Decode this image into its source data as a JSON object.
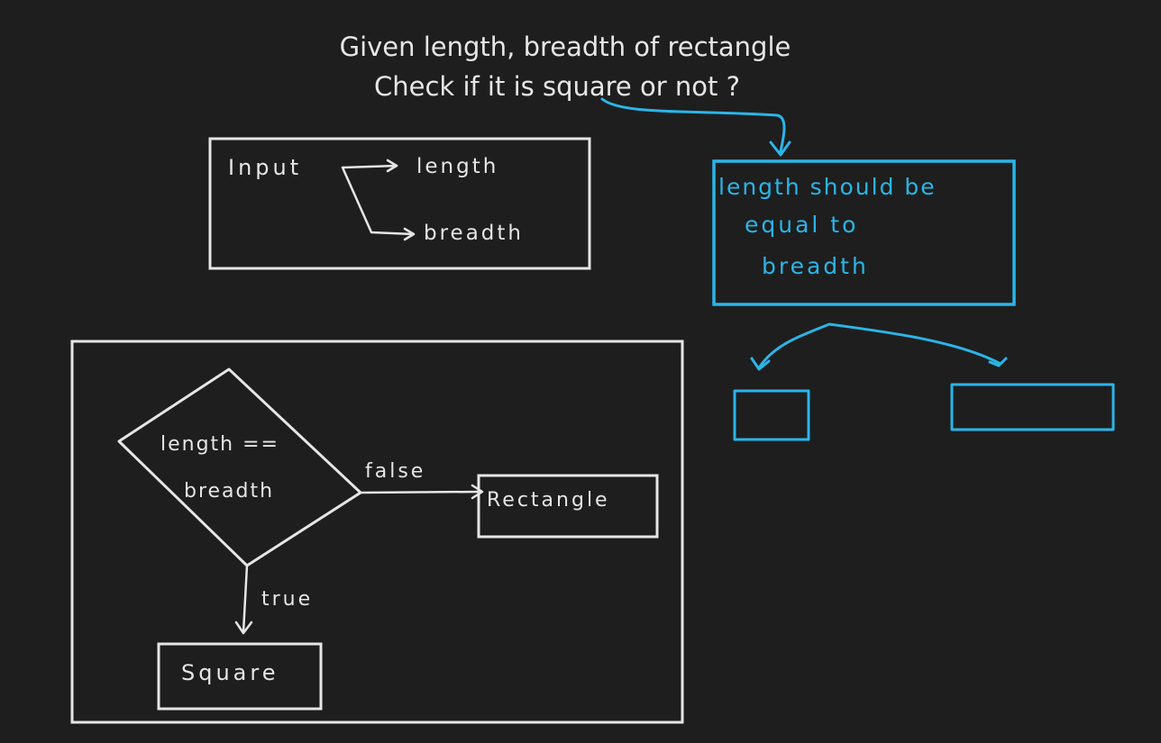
{
  "theme": {
    "background": "#1e1e1e",
    "ink": "#e6e6e6",
    "accent": "#2bb5e8"
  },
  "problem": {
    "line1": "Given length, breadth of rectangle",
    "line2": "Check if it is square or not ?"
  },
  "input_box": {
    "input_label": "Input",
    "output_1": "length",
    "output_2": "breadth"
  },
  "condition_note": {
    "line1": "length should be",
    "line2": "equal to",
    "line3": "breadth"
  },
  "flowchart": {
    "decision_line1": "length ==",
    "decision_line2": "breadth",
    "false_label": "false",
    "true_label": "true",
    "false_result": "Rectangle",
    "true_result": "Square"
  }
}
